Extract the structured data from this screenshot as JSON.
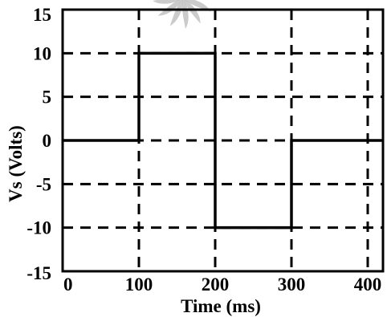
{
  "chart_data": {
    "type": "line",
    "title": "",
    "xlabel": "Time (ms)",
    "ylabel": "Vs (Volts)",
    "xlim": [
      0,
      420
    ],
    "ylim": [
      -15,
      15
    ],
    "x_ticks": [
      0,
      100,
      200,
      300,
      400
    ],
    "x_tick_labels": [
      "0",
      "100",
      "200",
      "300",
      "400"
    ],
    "y_ticks": [
      15,
      10,
      5,
      0,
      -5,
      -10,
      -15
    ],
    "y_tick_labels": [
      "15",
      "10",
      "5",
      "0",
      "-5",
      "-10",
      "-15"
    ],
    "grid": true,
    "grid_style": "dashed",
    "legend": "none",
    "series": [
      {
        "x": [
          0,
          100,
          100,
          200,
          200,
          300,
          300,
          420
        ],
        "y": [
          0,
          0,
          10,
          10,
          -10,
          -10,
          0,
          0
        ]
      }
    ],
    "colors": {
      "line": "#000000",
      "grid": "#000000",
      "watermark": "#b9b9b9"
    }
  },
  "watermark": {
    "icon": "pinwheel-logo-icon"
  }
}
